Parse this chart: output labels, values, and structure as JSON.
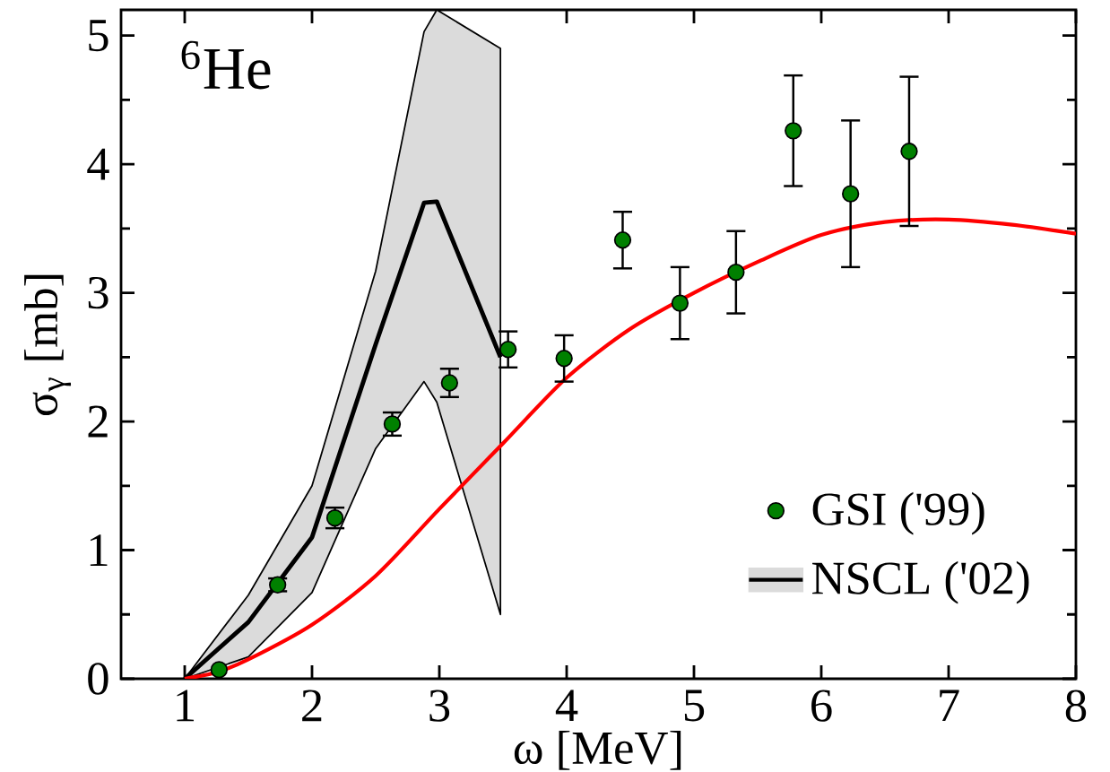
{
  "chart_data": {
    "type": "scatter",
    "xlabel": "ω [MeV]",
    "ylabel": "σ$_{γ}$ [mb]",
    "annotations": [
      "$^{6}$He"
    ],
    "xlim": [
      0.5,
      8
    ],
    "ylim": [
      0,
      5.2
    ],
    "xticks": [
      1,
      2,
      3,
      4,
      5,
      6,
      7,
      8
    ],
    "yticks": [
      0,
      1,
      2,
      3,
      4,
      5
    ],
    "legend": "bottom right",
    "grid": false,
    "series": [
      {
        "type": "scatter",
        "name": "GSI ('99)",
        "color": "#008000",
        "marker": "circle",
        "x": [
          1.27,
          1.73,
          2.18,
          2.63,
          3.08,
          3.54,
          3.98,
          4.44,
          4.89,
          5.33,
          5.78,
          6.23,
          6.69
        ],
        "values": [
          0.07,
          0.73,
          1.25,
          1.98,
          2.3,
          2.56,
          2.49,
          3.41,
          2.92,
          3.16,
          4.26,
          3.77,
          4.1
        ],
        "errors": [
          null,
          0.05,
          0.08,
          0.09,
          0.11,
          0.14,
          0.18,
          0.22,
          0.28,
          0.32,
          0.43,
          0.57,
          0.58
        ]
      },
      {
        "type": "line",
        "name": "NSCL ('02)",
        "color": "#000000",
        "marker": "none",
        "x": [
          1,
          1.5,
          2,
          2.5,
          2.88,
          2.98,
          3.48
        ],
        "values": [
          0,
          0.44,
          1.1,
          2.6,
          3.7,
          3.71,
          2.5
        ],
        "lower": [
          0,
          0.17,
          0.67,
          1.79,
          2.31,
          2.15,
          0.5
        ],
        "upper": [
          0,
          0.65,
          1.5,
          3.17,
          5.03,
          5.2,
          4.9
        ]
      },
      {
        "type": "line",
        "color": "#ff0000",
        "marker": "none",
        "x": [
          1,
          1.25,
          1.5,
          2,
          2.5,
          3,
          3.5,
          4,
          4.5,
          5,
          5.5,
          6,
          6.5,
          7,
          7.5,
          8
        ],
        "values": [
          0,
          0.05,
          0.15,
          0.42,
          0.8,
          1.32,
          1.83,
          2.34,
          2.72,
          3.0,
          3.24,
          3.45,
          3.55,
          3.57,
          3.53,
          3.46
        ]
      }
    ]
  }
}
